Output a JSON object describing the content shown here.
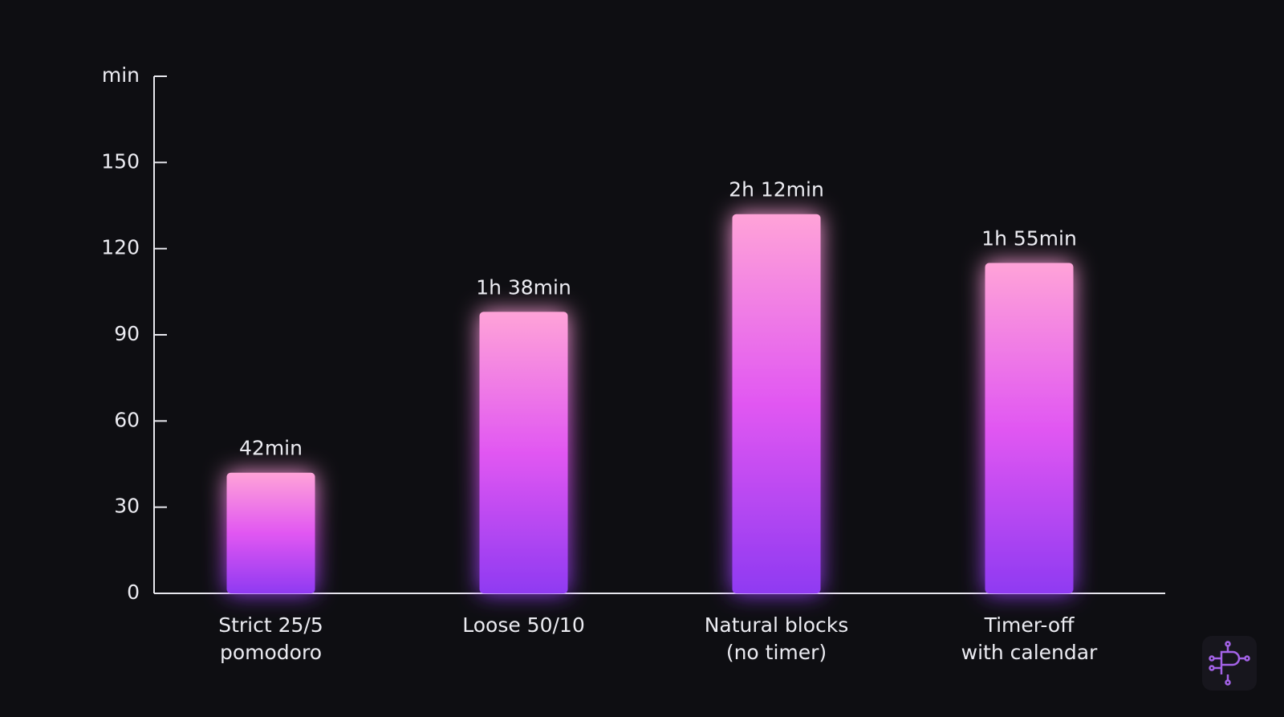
{
  "chart_data": {
    "type": "bar",
    "categories": [
      [
        "Strict 25/5",
        "pomodoro"
      ],
      [
        "Loose 50/10"
      ],
      [
        "Natural blocks",
        "(no timer)"
      ],
      [
        "Timer-off",
        "with calendar"
      ]
    ],
    "values": [
      42,
      98,
      132,
      115
    ],
    "value_labels": [
      "42min",
      "1h 38min",
      "2h 12min",
      "1h 55min"
    ],
    "gradient": [
      "#ffa3d8",
      "#e157f2",
      "#8f3af2"
    ],
    "ylim": [
      0,
      180
    ],
    "yticks": [
      0,
      30,
      60,
      90,
      120,
      150,
      {
        "value": 180,
        "label": "min"
      }
    ],
    "grid": false
  }
}
